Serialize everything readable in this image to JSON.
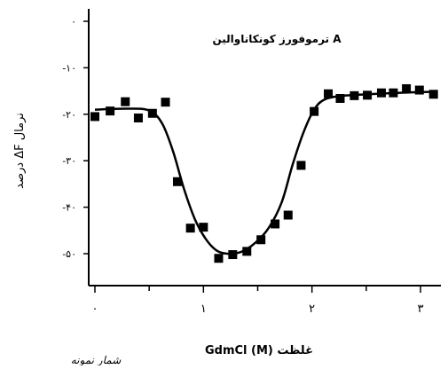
{
  "chart_data": {
    "type": "line",
    "title": "ترموفورز کونکاناوالین A",
    "xlabel": "غلظت GdmCl (M)",
    "ylabel": "درصد ΔF نرمال",
    "xlim": [
      0,
      3.3
    ],
    "ylim": [
      -61,
      0
    ],
    "x_ticks": [
      {
        "value": 0,
        "label": "۰"
      },
      {
        "value": 1,
        "label": "۱"
      },
      {
        "value": 2,
        "label": "۲"
      },
      {
        "value": 3,
        "label": "۳"
      }
    ],
    "y_ticks": [
      {
        "value": 0,
        "label": "۰"
      },
      {
        "value": -10,
        "label": "-۱۰"
      },
      {
        "value": -20,
        "label": "-۲۰"
      },
      {
        "value": -30,
        "label": "-۳۰"
      },
      {
        "value": -40,
        "label": "-۴۰"
      },
      {
        "value": -50,
        "label": "-۵۰"
      }
    ],
    "series": [
      {
        "marker": "square",
        "color": "#000000",
        "points": [
          {
            "x": 0.0,
            "y": -20.5
          },
          {
            "x": 0.14,
            "y": -19.3
          },
          {
            "x": 0.28,
            "y": -17.3
          },
          {
            "x": 0.4,
            "y": -20.8
          },
          {
            "x": 0.53,
            "y": -19.8
          },
          {
            "x": 0.65,
            "y": -17.4
          },
          {
            "x": 0.76,
            "y": -34.5
          },
          {
            "x": 0.88,
            "y": -44.5
          },
          {
            "x": 1.0,
            "y": -44.3
          },
          {
            "x": 1.14,
            "y": -51.0
          },
          {
            "x": 1.27,
            "y": -50.2
          },
          {
            "x": 1.4,
            "y": -49.5
          },
          {
            "x": 1.53,
            "y": -47.0
          },
          {
            "x": 1.66,
            "y": -43.6
          },
          {
            "x": 1.78,
            "y": -41.7
          },
          {
            "x": 1.9,
            "y": -31.0
          },
          {
            "x": 2.02,
            "y": -19.4
          },
          {
            "x": 2.15,
            "y": -15.6
          },
          {
            "x": 2.26,
            "y": -16.6
          },
          {
            "x": 2.39,
            "y": -16.0
          },
          {
            "x": 2.51,
            "y": -15.9
          },
          {
            "x": 2.64,
            "y": -15.4
          },
          {
            "x": 2.75,
            "y": -15.4
          },
          {
            "x": 2.87,
            "y": -14.5
          },
          {
            "x": 2.99,
            "y": -14.8
          },
          {
            "x": 3.12,
            "y": -15.7
          }
        ],
        "fit_curve": [
          {
            "x": 0.0,
            "y": -19.0
          },
          {
            "x": 0.3,
            "y": -18.8
          },
          {
            "x": 0.5,
            "y": -19.2
          },
          {
            "x": 0.62,
            "y": -22.0
          },
          {
            "x": 0.72,
            "y": -28.0
          },
          {
            "x": 0.82,
            "y": -36.0
          },
          {
            "x": 0.92,
            "y": -42.5
          },
          {
            "x": 1.02,
            "y": -46.8
          },
          {
            "x": 1.12,
            "y": -49.3
          },
          {
            "x": 1.22,
            "y": -50.0
          },
          {
            "x": 1.35,
            "y": -49.6
          },
          {
            "x": 1.48,
            "y": -47.6
          },
          {
            "x": 1.6,
            "y": -44.5
          },
          {
            "x": 1.72,
            "y": -39.0
          },
          {
            "x": 1.82,
            "y": -31.0
          },
          {
            "x": 1.92,
            "y": -24.0
          },
          {
            "x": 2.02,
            "y": -19.0
          },
          {
            "x": 2.12,
            "y": -16.8
          },
          {
            "x": 2.3,
            "y": -16.0
          },
          {
            "x": 2.6,
            "y": -15.6
          },
          {
            "x": 2.9,
            "y": -15.3
          },
          {
            "x": 3.12,
            "y": -15.2
          }
        ]
      }
    ],
    "grid": false,
    "legend": "none"
  },
  "footer_note": "شمار نمونه"
}
